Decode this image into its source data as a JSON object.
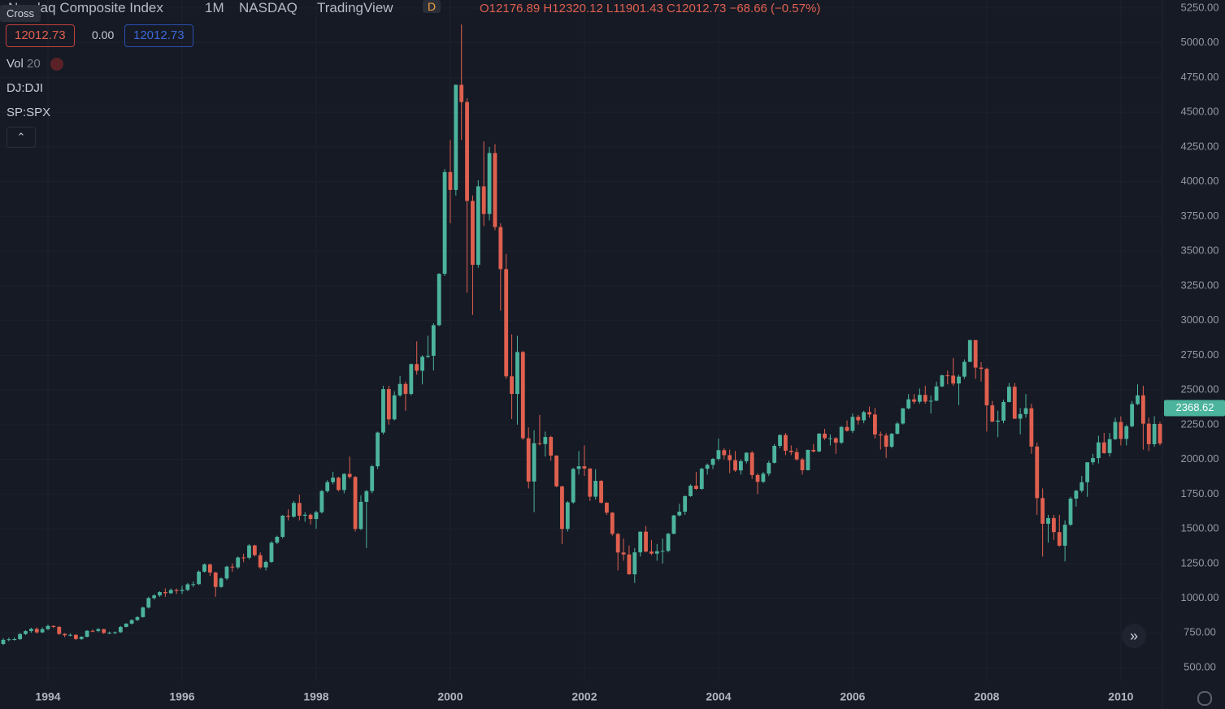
{
  "header": {
    "tooltip": "Cross",
    "title": "Nasdaq Composite Index",
    "interval": "1M",
    "exchange": "NASDAQ",
    "source": "TradingView",
    "badge": "D",
    "ohlc": [
      {
        "key": "O",
        "value": "12176.89"
      },
      {
        "key": "H",
        "value": "12320.12"
      },
      {
        "key": "L",
        "value": "11901.43"
      },
      {
        "key": "C",
        "value": "12012.73"
      }
    ],
    "change": "−68.66 (−0.57%)"
  },
  "price_row": {
    "sell": "12012.73",
    "spread": "0.00",
    "buy": "12012.73"
  },
  "indicators": [
    {
      "name": "Vol",
      "param": "20"
    },
    {
      "name": "DJ:DJI"
    },
    {
      "name": "SP:SPX"
    }
  ],
  "chart_data": {
    "type": "candlestick",
    "up_color": "#4cb39d",
    "down_color": "#e0604f",
    "grid": true,
    "categories": [
      null,
      null,
      null,
      null,
      null,
      null,
      null,
      null,
      "1994",
      null,
      null,
      null,
      null,
      null,
      null,
      null,
      null,
      null,
      null,
      null,
      null,
      null,
      null,
      null,
      null,
      null,
      null,
      null,
      null,
      null,
      null,
      null,
      "1996",
      null,
      null,
      null,
      null,
      null,
      null,
      null,
      null,
      null,
      null,
      null,
      null,
      null,
      null,
      null,
      null,
      null,
      null,
      null,
      null,
      null,
      null,
      null,
      "1998",
      null,
      null,
      null,
      null,
      null,
      null,
      null,
      null,
      null,
      null,
      null,
      null,
      null,
      null,
      null,
      null,
      null,
      null,
      null,
      null,
      null,
      null,
      null,
      "2000",
      null,
      null,
      null,
      null,
      null,
      null,
      null,
      null,
      null,
      null,
      null,
      null,
      null,
      null,
      null,
      null,
      null,
      null,
      null,
      null,
      null,
      null,
      null,
      "2002",
      null,
      null,
      null,
      null,
      null,
      null,
      null,
      null,
      null,
      null,
      null,
      null,
      null,
      null,
      null,
      null,
      null,
      null,
      null,
      null,
      null,
      null,
      null,
      "2004",
      null,
      null,
      null,
      null,
      null,
      null,
      null,
      null,
      null,
      null,
      null,
      null,
      null,
      null,
      null,
      null,
      null,
      null,
      null,
      null,
      null,
      null,
      null,
      "2006",
      null,
      null,
      null,
      null,
      null,
      null,
      null,
      null,
      null,
      null,
      null,
      null,
      null,
      null,
      null,
      null,
      null,
      null,
      null,
      null,
      null,
      null,
      null,
      "2008",
      null,
      null,
      null,
      null,
      null,
      null,
      null,
      null,
      null,
      null,
      null,
      null,
      null,
      null,
      null,
      null,
      null,
      null,
      null,
      null,
      null,
      null,
      null,
      "2010",
      null,
      null,
      null,
      null,
      null,
      null,
      null
    ],
    "open": [
      670,
      700,
      704,
      705,
      742,
      763,
      779,
      754,
      777,
      800,
      793,
      743,
      733,
      736,
      706,
      722,
      765,
      764,
      777,
      750,
      752,
      755,
      793,
      817,
      843,
      864,
      933,
      1001,
      1020,
      1044,
      1036,
      1059,
      1052,
      1060,
      1100,
      1101,
      1191,
      1243,
      1185,
      1081,
      1142,
      1227,
      1222,
      1293,
      1291,
      1380,
      1310,
      1222,
      1261,
      1400,
      1442,
      1594,
      1587,
      1686,
      1594,
      1601,
      1570,
      1619,
      1771,
      1836,
      1868,
      1779,
      1895,
      1873,
      1499,
      1694,
      1771,
      1950,
      2193,
      2506,
      2288,
      2461,
      2543,
      2471,
      2686,
      2638,
      2739,
      2746,
      2966,
      3336,
      4069,
      3940,
      4697,
      4573,
      3861,
      3401,
      3966,
      3767,
      4206,
      3673,
      3370,
      2598,
      2471,
      2773,
      2152,
      1840,
      2116,
      2110,
      2161,
      2027,
      1805,
      1499,
      1690,
      1931,
      1950,
      1934,
      1731,
      1845,
      1688,
      1616,
      1463,
      1329,
      1315,
      1172,
      1330,
      1479,
      1336,
      1321,
      1338,
      1341,
      1464,
      1596,
      1623,
      1735,
      1810,
      1787,
      1932,
      1960,
      2003,
      2066,
      2030,
      1994,
      1920,
      1987,
      2048,
      1887,
      1838,
      1897,
      1975,
      2097,
      2175,
      2062,
      2052,
      1999,
      1922,
      2068,
      2057,
      2185,
      2152,
      2152,
      2120,
      2233,
      2205,
      2306,
      2281,
      2340,
      2323,
      2179,
      2172,
      2091,
      2184,
      2258,
      2367,
      2432,
      2415,
      2464,
      2416,
      2422,
      2525,
      2605,
      2603,
      2546,
      2596,
      2702,
      2859,
      2661,
      2652,
      2389,
      2271,
      2279,
      2413,
      2523,
      2293,
      2326,
      2368,
      2092,
      1721,
      1536,
      1577,
      1476,
      1378,
      1529,
      1717,
      1774,
      1835,
      1979,
      2009,
      2122,
      2045,
      2145,
      2269,
      2147,
      2238,
      2398,
      2461,
      2257,
      2109,
      2255
    ],
    "high": [
      712,
      716,
      718,
      748,
      770,
      787,
      790,
      790,
      810,
      805,
      800,
      748,
      745,
      740,
      726,
      770,
      775,
      785,
      780,
      760,
      760,
      800,
      820,
      848,
      870,
      940,
      1010,
      1030,
      1050,
      1070,
      1070,
      1070,
      1090,
      1110,
      1120,
      1200,
      1250,
      1250,
      1190,
      1150,
      1235,
      1250,
      1300,
      1320,
      1390,
      1385,
      1330,
      1270,
      1410,
      1450,
      1600,
      1640,
      1700,
      1745,
      1620,
      1610,
      1630,
      1780,
      1850,
      1910,
      1875,
      1900,
      2020,
      1880,
      1740,
      1780,
      1960,
      2200,
      2530,
      2530,
      2490,
      2600,
      2560,
      2690,
      2850,
      2750,
      2890,
      2980,
      3340,
      4090,
      4300,
      4700,
      5132,
      4600,
      3900,
      4010,
      4290,
      4250,
      4270,
      3700,
      3480,
      2900,
      2890,
      2780,
      2230,
      2210,
      2320,
      2200,
      2170,
      2030,
      1810,
      1700,
      1940,
      2060,
      2100,
      1935,
      1930,
      1850,
      1690,
      1620,
      1470,
      1430,
      1380,
      1360,
      1480,
      1520,
      1420,
      1390,
      1430,
      1470,
      1600,
      1680,
      1740,
      1820,
      1910,
      1940,
      1970,
      2010,
      2150,
      2080,
      2070,
      2060,
      2000,
      2050,
      2060,
      1900,
      1910,
      1990,
      2110,
      2180,
      2190,
      2100,
      2080,
      2010,
      2070,
      2110,
      2190,
      2220,
      2180,
      2160,
      2240,
      2280,
      2330,
      2320,
      2350,
      2380,
      2370,
      2200,
      2190,
      2190,
      2270,
      2370,
      2470,
      2470,
      2510,
      2530,
      2460,
      2560,
      2610,
      2640,
      2730,
      2610,
      2720,
      2860,
      2850,
      2700,
      2660,
      2420,
      2350,
      2430,
      2550,
      2550,
      2370,
      2470,
      2400,
      2120,
      1790,
      1600,
      1600,
      1600,
      1560,
      1730,
      1780,
      1880,
      1980,
      2040,
      2170,
      2190,
      2190,
      2300,
      2310,
      2250,
      2420,
      2540,
      2530,
      2300,
      2310,
      2270
    ],
    "low": [
      662,
      690,
      694,
      699,
      735,
      752,
      745,
      748,
      770,
      785,
      735,
      720,
      725,
      700,
      700,
      718,
      755,
      755,
      742,
      740,
      740,
      750,
      790,
      810,
      835,
      860,
      925,
      990,
      1010,
      1010,
      1030,
      1030,
      1030,
      1050,
      1080,
      1095,
      1185,
      1160,
      1010,
      1075,
      1130,
      1190,
      1210,
      1260,
      1280,
      1300,
      1210,
      1200,
      1255,
      1390,
      1430,
      1560,
      1580,
      1560,
      1550,
      1530,
      1500,
      1610,
      1760,
      1820,
      1770,
      1755,
      1860,
      1480,
      1490,
      1360,
      1755,
      1930,
      2180,
      2250,
      2280,
      2450,
      2350,
      2460,
      2610,
      2540,
      2730,
      2640,
      2960,
      3320,
      3700,
      3900,
      4300,
      3200,
      3040,
      3380,
      3680,
      3720,
      3650,
      3070,
      2580,
      2290,
      2250,
      2140,
      1790,
      1620,
      2100,
      2020,
      1990,
      1800,
      1390,
      1480,
      1680,
      1890,
      1880,
      1700,
      1710,
      1680,
      1600,
      1450,
      1200,
      1270,
      1170,
      1110,
      1300,
      1330,
      1310,
      1270,
      1250,
      1330,
      1460,
      1590,
      1600,
      1730,
      1780,
      1780,
      1890,
      1930,
      1990,
      2000,
      1900,
      1910,
      1890,
      1970,
      1860,
      1750,
      1830,
      1880,
      1970,
      2080,
      2030,
      2030,
      1990,
      1890,
      1920,
      2050,
      2050,
      2140,
      2100,
      2040,
      2110,
      2200,
      2190,
      2250,
      2260,
      2300,
      2150,
      2070,
      2010,
      2080,
      2180,
      2250,
      2360,
      2400,
      2400,
      2400,
      2330,
      2420,
      2520,
      2540,
      2530,
      2390,
      2580,
      2700,
      2580,
      2560,
      2200,
      2270,
      2160,
      2260,
      2410,
      2290,
      2180,
      2300,
      2040,
      1600,
      1300,
      1400,
      1420,
      1370,
      1265,
      1520,
      1660,
      1760,
      1730,
      1960,
      1970,
      2040,
      2020,
      2140,
      2100,
      2100,
      2230,
      2390,
      2070,
      2060,
      2090,
      2100
    ],
    "close": [
      700,
      704,
      705,
      742,
      763,
      779,
      754,
      777,
      800,
      793,
      743,
      733,
      736,
      706,
      722,
      765,
      764,
      777,
      750,
      752,
      755,
      793,
      817,
      843,
      864,
      933,
      1001,
      1020,
      1044,
      1036,
      1059,
      1052,
      1060,
      1100,
      1101,
      1191,
      1243,
      1185,
      1081,
      1142,
      1227,
      1222,
      1293,
      1291,
      1380,
      1310,
      1222,
      1261,
      1400,
      1442,
      1594,
      1587,
      1686,
      1594,
      1601,
      1570,
      1619,
      1771,
      1836,
      1868,
      1779,
      1895,
      1873,
      1499,
      1694,
      1771,
      1950,
      2193,
      2506,
      2288,
      2461,
      2543,
      2471,
      2686,
      2638,
      2739,
      2746,
      2966,
      3336,
      4069,
      3940,
      4697,
      4573,
      3861,
      3401,
      3966,
      3767,
      4206,
      3673,
      3370,
      2598,
      2471,
      2773,
      2152,
      1840,
      2116,
      2110,
      2161,
      2027,
      1805,
      1499,
      1690,
      1931,
      1950,
      1934,
      1731,
      1845,
      1688,
      1616,
      1463,
      1329,
      1315,
      1172,
      1330,
      1479,
      1336,
      1321,
      1338,
      1341,
      1464,
      1596,
      1623,
      1735,
      1810,
      1787,
      1932,
      1960,
      2003,
      2066,
      2030,
      1994,
      1920,
      1987,
      2048,
      1887,
      1838,
      1897,
      1975,
      2097,
      2175,
      2062,
      2052,
      1999,
      1922,
      2068,
      2057,
      2185,
      2152,
      2152,
      2120,
      2233,
      2205,
      2306,
      2281,
      2340,
      2323,
      2179,
      2172,
      2091,
      2184,
      2258,
      2367,
      2432,
      2415,
      2464,
      2416,
      2422,
      2525,
      2605,
      2603,
      2546,
      2596,
      2702,
      2859,
      2661,
      2652,
      2389,
      2271,
      2279,
      2413,
      2523,
      2293,
      2326,
      2368,
      2092,
      1721,
      1536,
      1577,
      1476,
      1378,
      1529,
      1717,
      1774,
      1835,
      1979,
      2009,
      2122,
      2045,
      2145,
      2269,
      2147,
      2238,
      2398,
      2461,
      2257,
      2109,
      2255,
      2114
    ],
    "ylim": [
      395,
      5308
    ],
    "yticks": [
      {
        "value": 500,
        "label": "500.00"
      },
      {
        "value": 750,
        "label": "750.00"
      },
      {
        "value": 1000,
        "label": "1000.00"
      },
      {
        "value": 1250,
        "label": "1250.00"
      },
      {
        "value": 1500,
        "label": "1500.00"
      },
      {
        "value": 1750,
        "label": "1750.00"
      },
      {
        "value": 2000,
        "label": "2000.00"
      },
      {
        "value": 2250,
        "label": "2250.00"
      },
      {
        "value": 2500,
        "label": "2500.00"
      },
      {
        "value": 2750,
        "label": "2750.00"
      },
      {
        "value": 3000,
        "label": "3000.00"
      },
      {
        "value": 3250,
        "label": "3250.00"
      },
      {
        "value": 3500,
        "label": "3500.00"
      },
      {
        "value": 3750,
        "label": "3750.00"
      },
      {
        "value": 4000,
        "label": "4000.00"
      },
      {
        "value": 4250,
        "label": "4250.00"
      },
      {
        "value": 4500,
        "label": "4500.00"
      },
      {
        "value": 4750,
        "label": "4750.00"
      },
      {
        "value": 5000,
        "label": "5000.00"
      },
      {
        "value": 5250,
        "label": "5250.00"
      }
    ],
    "price_label": {
      "value": 2368.62,
      "label": "2368.62"
    }
  }
}
